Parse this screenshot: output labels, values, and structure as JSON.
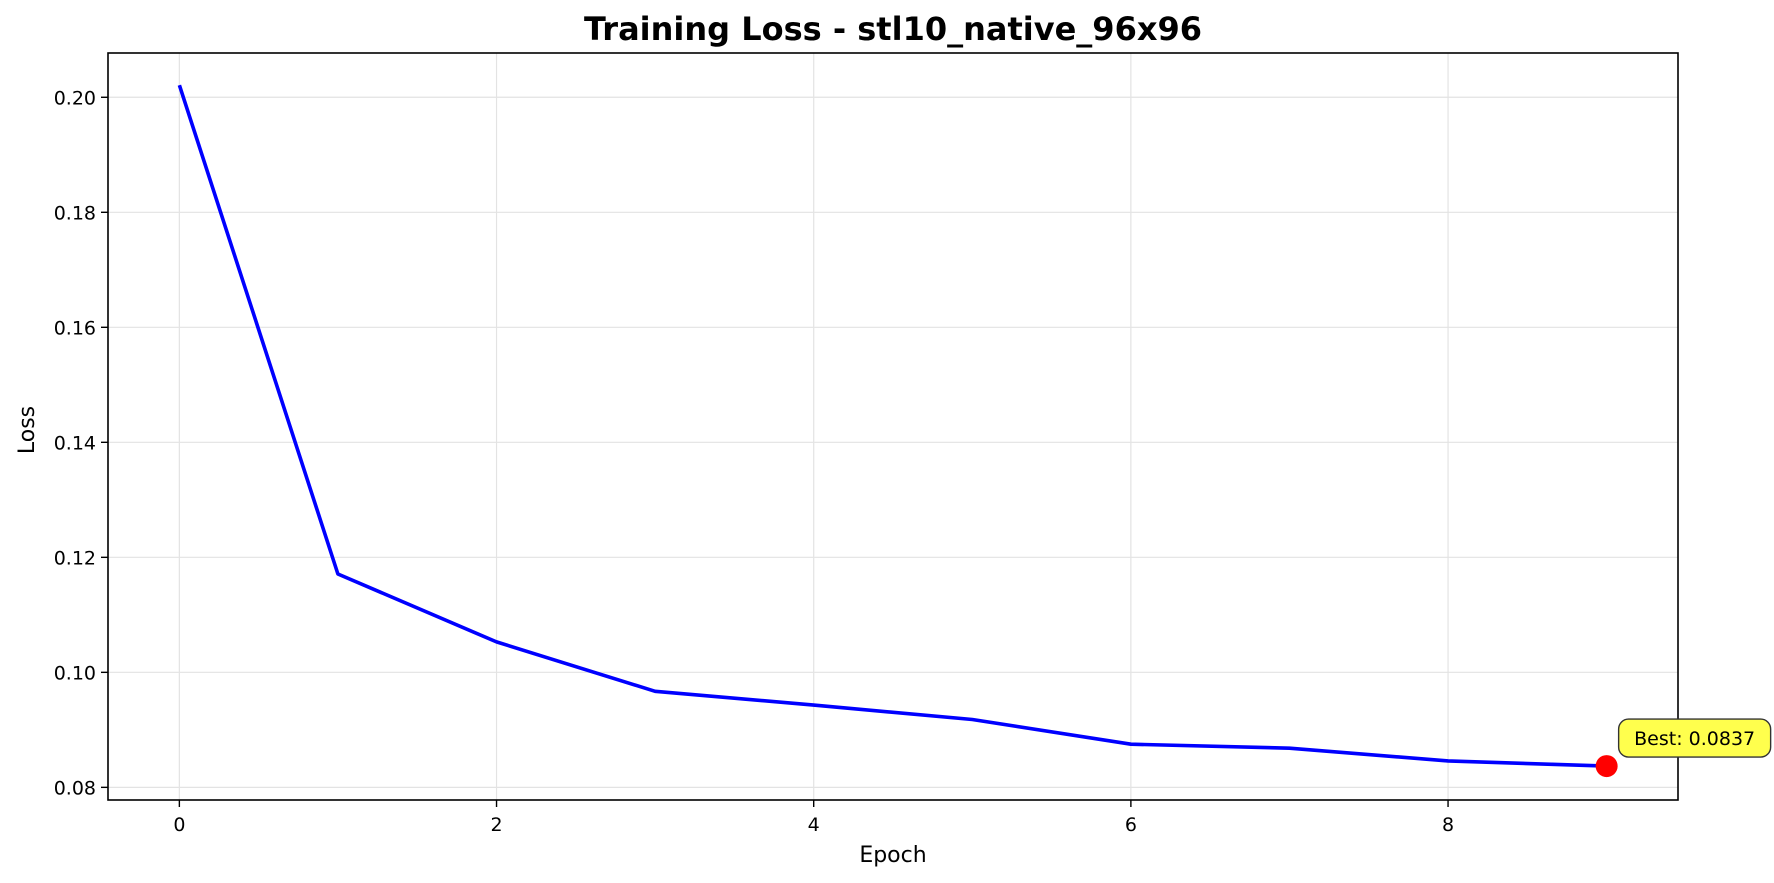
{
  "chart_data": {
    "type": "line",
    "title": "Training Loss - stl10_native_96x96",
    "xlabel": "Epoch",
    "ylabel": "Loss",
    "xlim": [
      -0.45,
      9.45
    ],
    "ylim": [
      0.0778,
      0.2077
    ],
    "x_ticks": [
      0,
      2,
      4,
      6,
      8
    ],
    "x_tick_labels": [
      "0",
      "2",
      "4",
      "6",
      "8"
    ],
    "y_ticks": [
      0.08,
      0.1,
      0.12,
      0.14,
      0.16,
      0.18,
      0.2
    ],
    "y_tick_labels": [
      "0.08",
      "0.10",
      "0.12",
      "0.14",
      "0.16",
      "0.18",
      "0.20"
    ],
    "grid": true,
    "series": [
      {
        "name": "Training Loss",
        "color": "#0000ff",
        "x": [
          0,
          1,
          2,
          3,
          4,
          5,
          6,
          7,
          8,
          9
        ],
        "values": [
          0.2021,
          0.1171,
          0.1053,
          0.0967,
          0.0943,
          0.0918,
          0.0875,
          0.0868,
          0.0846,
          0.0837
        ]
      }
    ],
    "best_point": {
      "x": 9,
      "y": 0.0837,
      "label": "Best: 0.0837",
      "marker_color": "#ff0000",
      "box_color": "#ffff4d"
    }
  }
}
